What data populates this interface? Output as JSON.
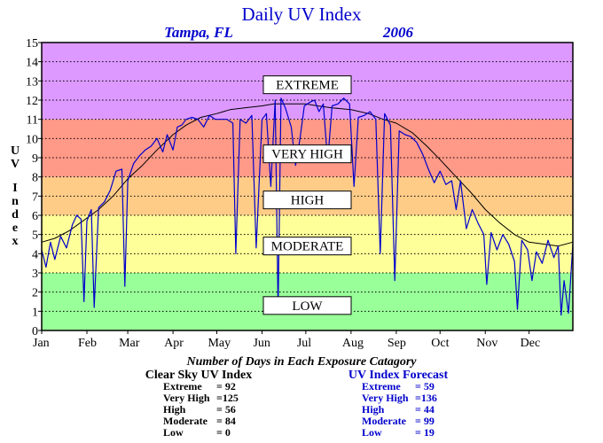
{
  "chart_data": {
    "type": "line",
    "title": "Daily UV Index",
    "subtitle_location": "Tampa, FL",
    "subtitle_year": "2006",
    "ylabel": "UV Index",
    "ylim": [
      0,
      15
    ],
    "xlim": [
      1,
      365
    ],
    "grid": true,
    "y_ticks": [
      "0",
      "1",
      "2",
      "3",
      "4",
      "5",
      "6",
      "7",
      "8",
      "9",
      "10",
      "11",
      "12",
      "13",
      "14",
      "15"
    ],
    "x_ticks": [
      {
        "label": "Jan",
        "day": 1
      },
      {
        "label": "Feb",
        "day": 32
      },
      {
        "label": "Mar",
        "day": 60
      },
      {
        "label": "Apr",
        "day": 91
      },
      {
        "label": "May",
        "day": 121
      },
      {
        "label": "Jun",
        "day": 152
      },
      {
        "label": "Jul",
        "day": 182
      },
      {
        "label": "Aug",
        "day": 213
      },
      {
        "label": "Sep",
        "day": 244
      },
      {
        "label": "Oct",
        "day": 274
      },
      {
        "label": "Nov",
        "day": 305
      },
      {
        "label": "Dec",
        "day": 335
      }
    ],
    "bands": [
      {
        "label": "LOW",
        "from": 0,
        "to": 3,
        "color": "#99ff99"
      },
      {
        "label": "MODERATE",
        "from": 3,
        "to": 6,
        "color": "#ffff99"
      },
      {
        "label": "HIGH",
        "from": 6,
        "to": 8,
        "color": "#ffcc88"
      },
      {
        "label": "VERY HIGH",
        "from": 8,
        "to": 11,
        "color": "#ff9988"
      },
      {
        "label": "EXTREME",
        "from": 11,
        "to": 15,
        "color": "#dd99ff"
      }
    ],
    "band_label_positions": [
      {
        "label": "EXTREME",
        "y": 12.8
      },
      {
        "label": "VERY HIGH",
        "y": 9.2
      },
      {
        "label": "HIGH",
        "y": 6.8
      },
      {
        "label": "MODERATE",
        "y": 4.4
      },
      {
        "label": "LOW",
        "y": 1.3
      }
    ],
    "series": [
      {
        "name": "Clear Sky UV Index",
        "color": "#000000",
        "points": [
          [
            1,
            4.6
          ],
          [
            10,
            4.8
          ],
          [
            20,
            5.2
          ],
          [
            31,
            5.8
          ],
          [
            40,
            6.3
          ],
          [
            50,
            7.0
          ],
          [
            60,
            7.9
          ],
          [
            70,
            8.6
          ],
          [
            80,
            9.4
          ],
          [
            91,
            10.2
          ],
          [
            100,
            10.7
          ],
          [
            110,
            11.1
          ],
          [
            121,
            11.3
          ],
          [
            130,
            11.5
          ],
          [
            140,
            11.6
          ],
          [
            152,
            11.7
          ],
          [
            160,
            11.8
          ],
          [
            170,
            11.8
          ],
          [
            182,
            11.8
          ],
          [
            190,
            11.7
          ],
          [
            200,
            11.6
          ],
          [
            213,
            11.5
          ],
          [
            225,
            11.3
          ],
          [
            235,
            11.0
          ],
          [
            244,
            10.8
          ],
          [
            255,
            10.3
          ],
          [
            265,
            9.6
          ],
          [
            274,
            8.9
          ],
          [
            285,
            8.0
          ],
          [
            295,
            7.2
          ],
          [
            305,
            6.3
          ],
          [
            315,
            5.6
          ],
          [
            325,
            5.0
          ],
          [
            335,
            4.6
          ],
          [
            345,
            4.5
          ],
          [
            355,
            4.4
          ],
          [
            365,
            4.6
          ]
        ]
      },
      {
        "name": "UV Index Forecast",
        "color": "#0000cc",
        "points": [
          [
            1,
            4.2
          ],
          [
            4,
            3.3
          ],
          [
            7,
            4.6
          ],
          [
            10,
            3.7
          ],
          [
            14,
            4.9
          ],
          [
            18,
            4.3
          ],
          [
            22,
            5.5
          ],
          [
            25,
            6.0
          ],
          [
            28,
            5.8
          ],
          [
            30,
            1.5
          ],
          [
            32,
            5.7
          ],
          [
            35,
            6.3
          ],
          [
            37,
            1.2
          ],
          [
            40,
            6.4
          ],
          [
            44,
            6.7
          ],
          [
            48,
            7.3
          ],
          [
            52,
            8.3
          ],
          [
            56,
            8.4
          ],
          [
            58,
            2.3
          ],
          [
            60,
            7.8
          ],
          [
            64,
            8.7
          ],
          [
            68,
            9.1
          ],
          [
            72,
            9.4
          ],
          [
            76,
            9.6
          ],
          [
            80,
            10.0
          ],
          [
            84,
            9.3
          ],
          [
            87,
            10.2
          ],
          [
            91,
            9.4
          ],
          [
            94,
            10.6
          ],
          [
            97,
            10.7
          ],
          [
            100,
            11.0
          ],
          [
            104,
            11.1
          ],
          [
            108,
            11.0
          ],
          [
            112,
            10.6
          ],
          [
            116,
            11.2
          ],
          [
            120,
            11.0
          ],
          [
            124,
            11.0
          ],
          [
            128,
            11.0
          ],
          [
            132,
            10.8
          ],
          [
            134,
            4.0
          ],
          [
            137,
            11.0
          ],
          [
            141,
            10.8
          ],
          [
            145,
            11.2
          ],
          [
            148,
            4.3
          ],
          [
            152,
            11.0
          ],
          [
            155,
            11.3
          ],
          [
            158,
            7.5
          ],
          [
            161,
            12.0
          ],
          [
            163,
            1.1
          ],
          [
            165,
            12.1
          ],
          [
            168,
            11.6
          ],
          [
            172,
            10.6
          ],
          [
            175,
            8.6
          ],
          [
            178,
            10.0
          ],
          [
            181,
            11.7
          ],
          [
            185,
            11.9
          ],
          [
            188,
            12.0
          ],
          [
            191,
            11.4
          ],
          [
            194,
            11.8
          ],
          [
            197,
            8.8
          ],
          [
            200,
            11.7
          ],
          [
            204,
            11.8
          ],
          [
            208,
            12.1
          ],
          [
            212,
            11.8
          ],
          [
            215,
            7.5
          ],
          [
            218,
            11.1
          ],
          [
            222,
            11.2
          ],
          [
            226,
            11.4
          ],
          [
            230,
            11.0
          ],
          [
            233,
            4.0
          ],
          [
            236,
            11.3
          ],
          [
            240,
            10.7
          ],
          [
            243,
            2.6
          ],
          [
            246,
            10.4
          ],
          [
            250,
            10.2
          ],
          [
            254,
            10.1
          ],
          [
            258,
            9.8
          ],
          [
            262,
            9.2
          ],
          [
            266,
            8.4
          ],
          [
            270,
            7.7
          ],
          [
            274,
            8.3
          ],
          [
            278,
            7.6
          ],
          [
            282,
            7.8
          ],
          [
            285,
            6.3
          ],
          [
            288,
            7.8
          ],
          [
            292,
            5.3
          ],
          [
            296,
            6.3
          ],
          [
            300,
            5.6
          ],
          [
            304,
            5.0
          ],
          [
            306,
            2.4
          ],
          [
            309,
            5.1
          ],
          [
            313,
            4.2
          ],
          [
            317,
            5.0
          ],
          [
            321,
            4.5
          ],
          [
            325,
            3.6
          ],
          [
            327,
            1.1
          ],
          [
            330,
            4.7
          ],
          [
            334,
            4.2
          ],
          [
            337,
            2.6
          ],
          [
            340,
            4.1
          ],
          [
            344,
            3.5
          ],
          [
            348,
            4.7
          ],
          [
            352,
            3.8
          ],
          [
            355,
            4.4
          ],
          [
            357,
            0.8
          ],
          [
            359,
            2.6
          ],
          [
            362,
            0.9
          ],
          [
            365,
            4.5
          ]
        ]
      }
    ]
  },
  "summary": {
    "title": "Number of Days in Each Exposure Catagory",
    "clear_sky": {
      "title": "Clear Sky UV Index",
      "rows": [
        {
          "label": "Extreme",
          "value": "= 92"
        },
        {
          "label": "Very High",
          "value": "=125"
        },
        {
          "label": "High",
          "value": "= 56"
        },
        {
          "label": "Moderate",
          "value": "= 84"
        },
        {
          "label": "Low",
          "value": "=   0"
        }
      ]
    },
    "forecast": {
      "title": "UV Index Forecast",
      "rows": [
        {
          "label": "Extreme",
          "value": "= 59"
        },
        {
          "label": "Very High",
          "value": "=136"
        },
        {
          "label": "High",
          "value": "= 44"
        },
        {
          "label": "Moderate",
          "value": "= 99"
        },
        {
          "label": "Low",
          "value": "= 19"
        }
      ]
    }
  },
  "colors": {
    "title": "#0000cc",
    "forecast_text": "#0000cc",
    "clear_sky_text": "#000000",
    "band_label_bg": "#ffffff"
  }
}
